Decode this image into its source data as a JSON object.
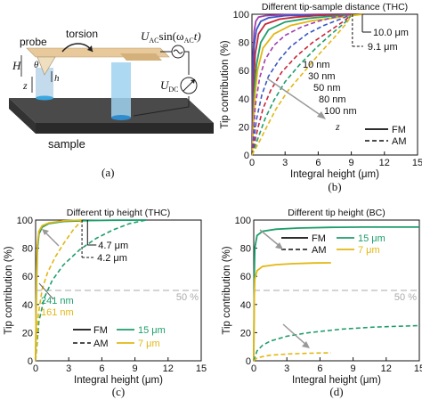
{
  "figure": {
    "panel_a": {
      "label": "(a)",
      "texts": {
        "probe": "probe",
        "torsion": "torsion",
        "sample": "sample",
        "H": "H",
        "theta": "θ",
        "h": "h",
        "z": "z",
        "uac_main": "U",
        "uac_sub": "AC",
        "uac_sin": "sin(ω",
        "uac_sub2": "AC",
        "uac_t": "t)",
        "udc_main": "U",
        "udc_sub": "DC"
      },
      "colors": {
        "tip": "#bcd7ea",
        "column": "#3aa7e0",
        "beam": "#e8c99b",
        "sample": "#3a3a3a"
      }
    },
    "colors": {
      "violet": "#a23fb0",
      "blue": "#3b57c4",
      "red": "#c6263b",
      "green": "#1e9e6b",
      "yellow": "#e2b714",
      "ref": "#bbbbbb"
    }
  },
  "chart_data": [
    {
      "type": "line",
      "panel": "(b)",
      "title": "Different tip-sample distance (THC)",
      "xlabel": "Integral height (μm)",
      "ylabel": "Tip contribution (%)",
      "xlim": [
        0,
        15
      ],
      "ylim": [
        0,
        100
      ],
      "xticks": [
        "0",
        "3",
        "6",
        "9",
        "12",
        "15"
      ],
      "yticks": [
        "0",
        "20",
        "40",
        "60",
        "80",
        "100"
      ],
      "legend": [
        "FM",
        "AM"
      ],
      "annotations": {
        "fm_end": "10.0 μm",
        "am_end": "9.1 μm",
        "z": "z"
      },
      "distances": [
        "10 nm",
        "30 nm",
        "50 nm",
        "80 nm",
        "100 nm"
      ],
      "series": [
        {
          "name": "10 nm",
          "mode": "FM",
          "color": "#a23fb0",
          "x": [
            0,
            0.1,
            0.2,
            0.35,
            0.6,
            1.2,
            3,
            6,
            9,
            10
          ],
          "y": [
            0,
            70,
            88,
            95,
            98,
            99,
            99.6,
            99.9,
            100,
            100
          ]
        },
        {
          "name": "30 nm",
          "mode": "FM",
          "color": "#3b57c4",
          "x": [
            0,
            0.1,
            0.2,
            0.4,
            0.8,
            1.5,
            3,
            6,
            9,
            10
          ],
          "y": [
            0,
            58,
            78,
            89,
            95,
            97.5,
            99,
            99.7,
            100,
            100
          ]
        },
        {
          "name": "50 nm",
          "mode": "FM",
          "color": "#c6263b",
          "x": [
            0,
            0.15,
            0.3,
            0.6,
            1.2,
            2.5,
            4,
            6,
            9,
            10
          ],
          "y": [
            0,
            52,
            72,
            86,
            93,
            96.5,
            98,
            99.2,
            100,
            100
          ]
        },
        {
          "name": "80 nm",
          "mode": "FM",
          "color": "#1e9e6b",
          "x": [
            0,
            0.2,
            0.4,
            0.8,
            1.5,
            3,
            5,
            7,
            9,
            10
          ],
          "y": [
            0,
            44,
            64,
            80,
            89,
            94.5,
            97,
            98.5,
            99.6,
            100
          ]
        },
        {
          "name": "100 nm",
          "mode": "FM",
          "color": "#e2b714",
          "x": [
            0,
            0.25,
            0.5,
            1,
            2,
            3.5,
            5.5,
            7.5,
            9,
            10
          ],
          "y": [
            0,
            40,
            60,
            76,
            86,
            92,
            95.5,
            97.5,
            99,
            100
          ]
        },
        {
          "name": "10 nm",
          "mode": "AM",
          "color": "#a23fb0",
          "x": [
            0,
            0.3,
            0.7,
            1.2,
            2,
            3,
            4.5,
            6,
            7.5,
            9.1
          ],
          "y": [
            0,
            35,
            55,
            68,
            78,
            85,
            91,
            95,
            98,
            100
          ]
        },
        {
          "name": "30 nm",
          "mode": "AM",
          "color": "#3b57c4",
          "x": [
            0,
            0.4,
            0.9,
            1.5,
            2.5,
            3.5,
            5,
            6.5,
            8,
            9.1
          ],
          "y": [
            0,
            25,
            43,
            56,
            68,
            77,
            86,
            92,
            96.5,
            100
          ]
        },
        {
          "name": "50 nm",
          "mode": "AM",
          "color": "#c6263b",
          "x": [
            0,
            0.5,
            1,
            1.7,
            2.7,
            4,
            5.5,
            7,
            8.3,
            9.1
          ],
          "y": [
            0,
            18,
            33,
            46,
            59,
            70,
            80,
            88,
            95,
            100
          ]
        },
        {
          "name": "80 nm",
          "mode": "AM",
          "color": "#1e9e6b",
          "x": [
            0,
            0.6,
            1.2,
            2,
            3,
            4.3,
            5.8,
            7.2,
            8.4,
            9.1
          ],
          "y": [
            0,
            13,
            26,
            39,
            52,
            64,
            76,
            86,
            94,
            100
          ]
        },
        {
          "name": "100 nm",
          "mode": "AM",
          "color": "#e2b714",
          "x": [
            0,
            0.7,
            1.4,
            2.2,
            3.3,
            4.6,
            6,
            7.4,
            8.5,
            9.1
          ],
          "y": [
            0,
            10,
            21,
            33,
            46,
            58,
            71,
            83,
            93,
            100
          ]
        }
      ]
    },
    {
      "type": "line",
      "panel": "(c)",
      "title": "Different tip height (THC)",
      "xlabel": "Integral height (μm)",
      "ylabel": "Tip contribution (%)",
      "xlim": [
        0,
        15
      ],
      "ylim": [
        0,
        100
      ],
      "xticks": [
        "0",
        "3",
        "6",
        "9",
        "12",
        "15"
      ],
      "yticks": [
        "0",
        "20",
        "40",
        "60",
        "80",
        "100"
      ],
      "reference": {
        "y": 50,
        "label": "50 %"
      },
      "annotations": {
        "end_15": "4.7 μm",
        "end_7": "4.2 μm",
        "len_15": "241 nm",
        "len_7": "161 nm"
      },
      "legend": [
        {
          "mode": "FM",
          "label": "15 μm"
        },
        {
          "mode": "AM",
          "label": "7 μm"
        }
      ],
      "series": [
        {
          "name": "15 μm",
          "mode": "FM",
          "color": "#1e9e6b",
          "x": [
            0,
            0.08,
            0.15,
            0.3,
            0.6,
            1.2,
            2.5,
            4.7,
            7,
            10
          ],
          "y": [
            0,
            55,
            78,
            90,
            95,
            97.5,
            99,
            99.6,
            99.9,
            100
          ]
        },
        {
          "name": "7 μm",
          "mode": "FM",
          "color": "#e2b714",
          "x": [
            0,
            0.08,
            0.15,
            0.3,
            0.6,
            1.2,
            2.5,
            4.2
          ],
          "y": [
            0,
            62,
            82,
            92,
            96,
            98,
            99.4,
            100
          ]
        },
        {
          "name": "15 μm",
          "mode": "AM",
          "color": "#1e9e6b",
          "x": [
            0,
            0.3,
            0.8,
            1.5,
            2.5,
            4,
            5.5,
            7,
            8.5,
            10
          ],
          "y": [
            0,
            28,
            45,
            57,
            68,
            79,
            87,
            93,
            97.5,
            100
          ]
        },
        {
          "name": "7 μm",
          "mode": "AM",
          "color": "#e2b714",
          "x": [
            0,
            0.25,
            0.6,
            1.1,
            1.8,
            2.6,
            3.4,
            4.2
          ],
          "y": [
            0,
            33,
            51,
            63,
            74,
            84,
            93,
            100
          ]
        }
      ]
    },
    {
      "type": "line",
      "panel": "(d)",
      "title": "Different tip height (BC)",
      "xlabel": "Integral height (μm)",
      "ylabel": "Tip contribution (%)",
      "xlim": [
        0,
        15
      ],
      "ylim": [
        0,
        100
      ],
      "xticks": [
        "0",
        "3",
        "6",
        "9",
        "12",
        "15"
      ],
      "yticks": [
        "0",
        "20",
        "40",
        "60",
        "80",
        "100"
      ],
      "reference": {
        "y": 50,
        "label": "50 %"
      },
      "legend": [
        {
          "mode": "FM",
          "label": "15 μm"
        },
        {
          "mode": "AM",
          "label": "7 μm"
        }
      ],
      "series": [
        {
          "name": "15 μm",
          "mode": "FM",
          "color": "#1e9e6b",
          "x": [
            0,
            0.05,
            0.1,
            0.3,
            0.8,
            2,
            4,
            7,
            10,
            15
          ],
          "y": [
            0,
            60,
            80,
            89,
            92,
            93.5,
            94.3,
            94.8,
            95,
            95
          ]
        },
        {
          "name": "7 μm",
          "mode": "FM",
          "color": "#e2b714",
          "x": [
            0,
            0.05,
            0.1,
            0.3,
            0.8,
            2,
            3.5,
            5.5,
            7
          ],
          "y": [
            0,
            45,
            58,
            64,
            67,
            68.3,
            69,
            69.5,
            69.6
          ]
        },
        {
          "name": "15 μm",
          "mode": "AM",
          "color": "#1e9e6b",
          "x": [
            0,
            0.3,
            0.8,
            1.5,
            3,
            5,
            8,
            11,
            15
          ],
          "y": [
            0,
            7,
            11,
            14,
            17.5,
            20,
            22.5,
            24,
            25
          ]
        },
        {
          "name": "7 μm",
          "mode": "AM",
          "color": "#e2b714",
          "x": [
            0,
            0.3,
            0.8,
            1.5,
            3,
            5,
            7
          ],
          "y": [
            0,
            2,
            3,
            4,
            4.8,
            5.4,
            5.7
          ]
        }
      ]
    }
  ]
}
